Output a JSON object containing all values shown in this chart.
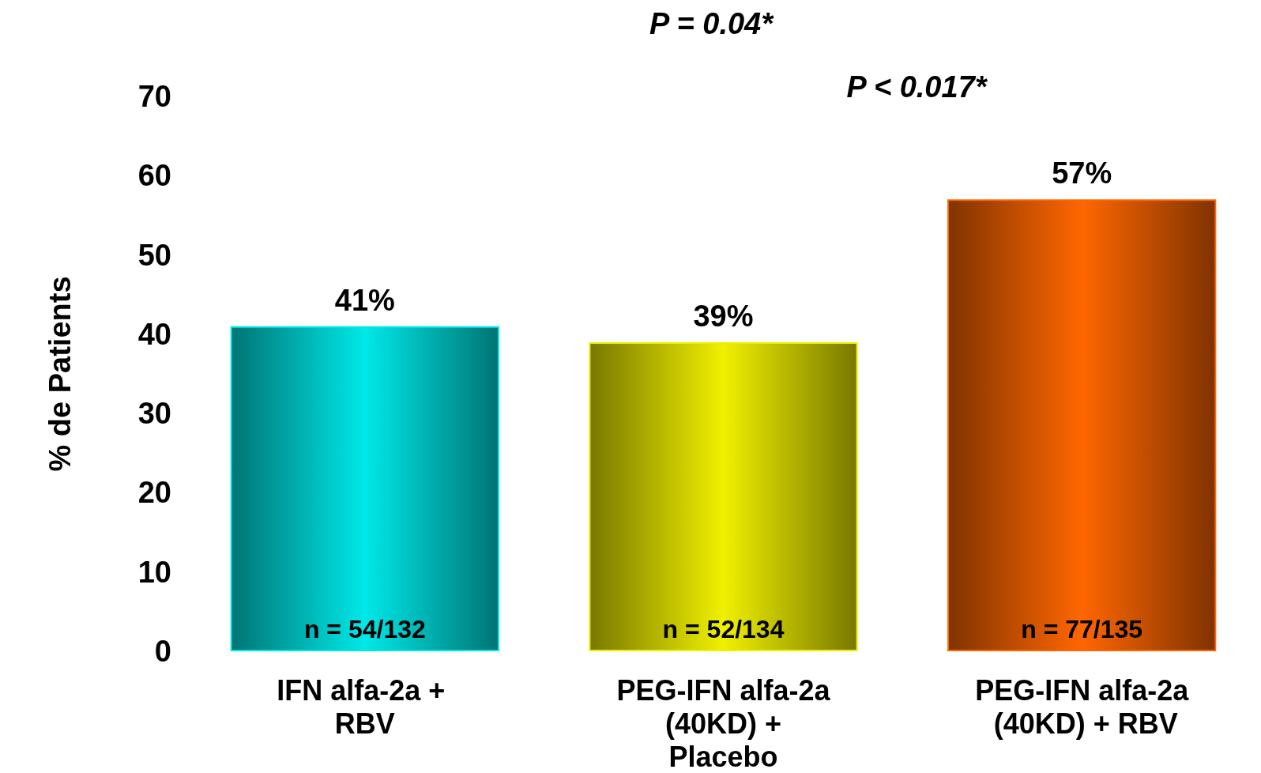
{
  "chart_data": {
    "type": "bar",
    "ylabel": "% de Patients",
    "categories": [
      "IFN alfa-2a + RBV",
      "PEG-IFN alfa-2a (40KD) + Placebo",
      "PEG-IFN alfa-2a (40KD) + RBV"
    ],
    "values": [
      41,
      39,
      57
    ],
    "colors": [
      "#00e8e8",
      "#f0f000",
      "#ff6600"
    ],
    "value_labels": [
      "41%",
      "39%",
      "57%"
    ],
    "ylim": [
      0,
      70
    ],
    "yticks": [
      0,
      10,
      20,
      30,
      40,
      50,
      60,
      70
    ],
    "grid": false,
    "annotations": [
      "P = 0.04*",
      "P < 0.017*",
      "n = 54/132",
      "n = 52/134",
      "n = 77/135"
    ]
  }
}
